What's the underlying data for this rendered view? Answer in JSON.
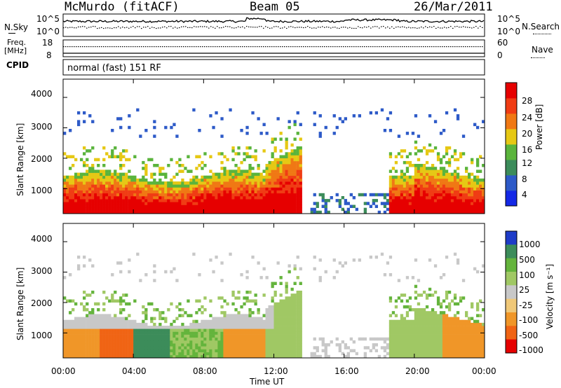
{
  "header": {
    "station": "McMurdo (fitACF)",
    "beam": "Beam 05",
    "date": "26/Mar/2011"
  },
  "top_panels": {
    "nsky_label": "N.Sky",
    "nsky_ticks": [
      "10^5",
      "10^0"
    ],
    "nsearch_label": "N.Search",
    "nsearch_ticks": [
      "10^5",
      "10^0"
    ],
    "freq_label_1": "Freq.",
    "freq_label_2": "[MHz]",
    "freq_ticks": [
      "18",
      "8"
    ],
    "nave_label": "Nave",
    "nave_ticks": [
      "60",
      "0"
    ],
    "cpid_label": "CPID",
    "cpid_text": "normal (fast) 151 RF"
  },
  "chart_data": [
    {
      "type": "heatmap",
      "name": "power-panel",
      "ylabel": "Slant Range [km]",
      "xlabel": "",
      "y_ticks": [
        "1000",
        "2000",
        "3000",
        "4000"
      ],
      "ylim": [
        180,
        4600
      ],
      "colorbar": {
        "label": "Power [dB]",
        "ticks": [
          "4",
          "8",
          "12",
          "16",
          "20",
          "24",
          "28"
        ],
        "colors": [
          "#1428e6",
          "#2d5ac8",
          "#3c8c5a",
          "#5ab43c",
          "#e6c814",
          "#f07814",
          "#f03c14",
          "#e60000"
        ]
      }
    },
    {
      "type": "heatmap",
      "name": "velocity-panel",
      "ylabel": "Slant Range [km]",
      "xlabel": "Time UT",
      "y_ticks": [
        "1000",
        "2000",
        "3000",
        "4000"
      ],
      "x_ticks": [
        "00:00",
        "04:00",
        "08:00",
        "12:00",
        "16:00",
        "20:00",
        "00:00"
      ],
      "ylim": [
        180,
        4600
      ],
      "xlim_hours": [
        0,
        24
      ],
      "colorbar": {
        "label": "Velocity [m s⁻¹]",
        "ticks": [
          "1000",
          "500",
          "100",
          "25",
          "-25",
          "-100",
          "-500",
          "-1000"
        ],
        "colors": [
          "#1e3cc8",
          "#3c8c5a",
          "#64b43c",
          "#a0c864",
          "#c8c8c8",
          "#f0c878",
          "#f09628",
          "#f06414",
          "#e60000"
        ]
      }
    }
  ]
}
